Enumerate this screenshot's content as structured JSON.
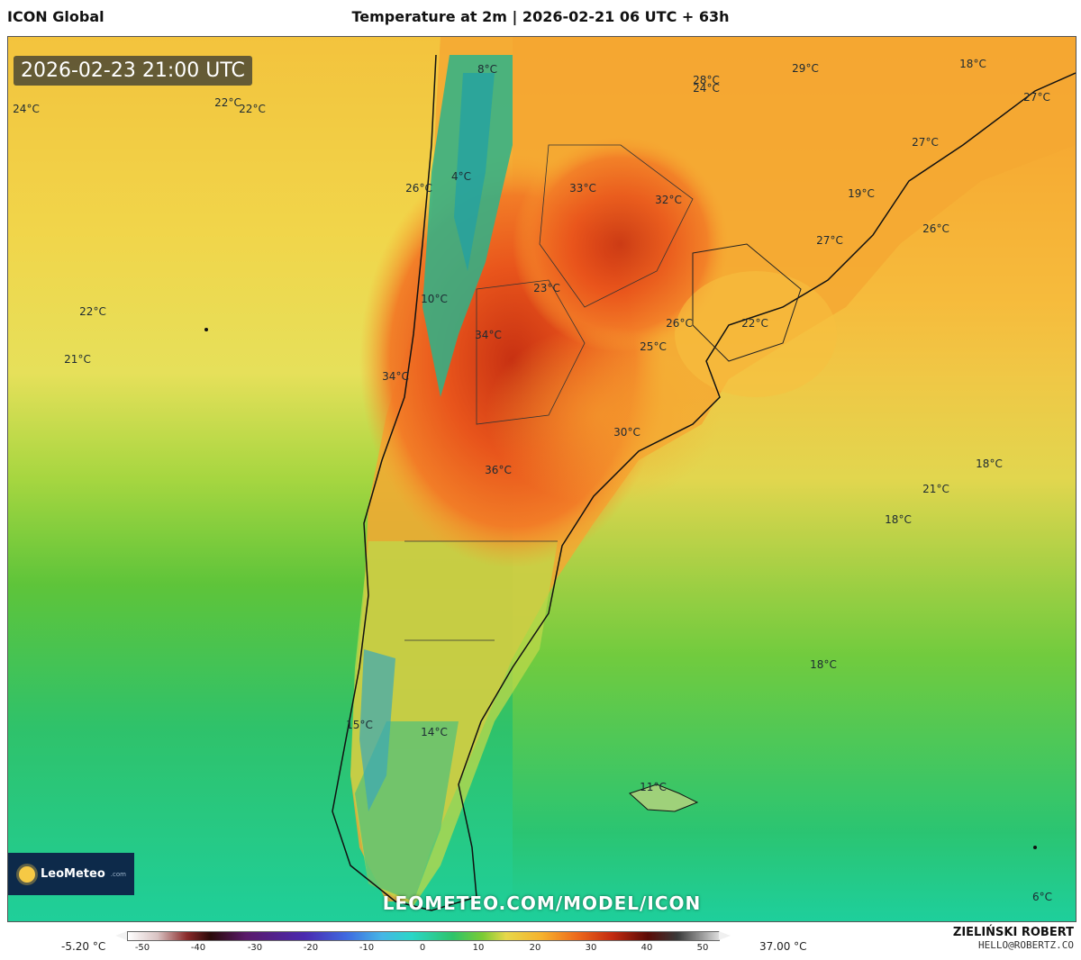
{
  "header": {
    "model": "ICON Global",
    "title": "Temperature at 2m | 2026-02-21 06 UTC + 63h"
  },
  "map": {
    "timestamp": "2026-02-23 21:00 UTC",
    "url": "LEOMETEO.COM/MODEL/ICON",
    "logo_text": "LeoMeteo",
    "logo_suffix": ".com",
    "temperature_labels": [
      {
        "text": "24°C"
      },
      {
        "text": "28°C"
      },
      {
        "text": "29°C"
      },
      {
        "text": "18°C"
      },
      {
        "text": "27°C"
      },
      {
        "text": "22°C"
      },
      {
        "text": "22°C"
      },
      {
        "text": "24°C"
      },
      {
        "text": "8°C"
      },
      {
        "text": "27°C"
      },
      {
        "text": "4°C"
      },
      {
        "text": "26°C"
      },
      {
        "text": "33°C"
      },
      {
        "text": "32°C"
      },
      {
        "text": "19°C"
      },
      {
        "text": "26°C"
      },
      {
        "text": "27°C"
      },
      {
        "text": "23°C"
      },
      {
        "text": "10°C"
      },
      {
        "text": "22°C"
      },
      {
        "text": "26°C"
      },
      {
        "text": "22°C"
      },
      {
        "text": "34°C"
      },
      {
        "text": "25°C"
      },
      {
        "text": "21°C"
      },
      {
        "text": "34°C"
      },
      {
        "text": "30°C"
      },
      {
        "text": "18°C"
      },
      {
        "text": "36°C"
      },
      {
        "text": "21°C"
      },
      {
        "text": "18°C"
      },
      {
        "text": "18°C"
      },
      {
        "text": "15°C"
      },
      {
        "text": "14°C"
      },
      {
        "text": "11°C"
      },
      {
        "text": "6°C"
      }
    ]
  },
  "legend": {
    "min_label": "-5.20 °C",
    "max_label": "37.00 °C",
    "ticks": [
      "-50",
      "-40",
      "-30",
      "-20",
      "-10",
      "0",
      "10",
      "20",
      "30",
      "40",
      "50"
    ]
  },
  "author": {
    "name": "ZIELIŃSKI ROBERT",
    "email": "HELLO@ROBERTZ.CO"
  }
}
